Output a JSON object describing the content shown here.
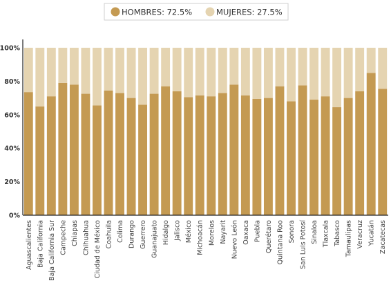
{
  "chart_data": {
    "type": "bar",
    "stacked": true,
    "percent": true,
    "title": "",
    "xlabel": "",
    "ylabel": "",
    "ylim": [
      0,
      100
    ],
    "y_ticks": [
      "0%",
      "20%",
      "40%",
      "60%",
      "80%",
      "100%"
    ],
    "grid": false,
    "legend_position": "top-center",
    "categories": [
      "Aguascalientes",
      "Baja California",
      "Baja California Sur",
      "Campeche",
      "Chiapas",
      "Chihuahua",
      "Ciudad de México",
      "Coahuila",
      "Colima",
      "Durango",
      "Guerrero",
      "Guanajuato",
      "Hidalgo",
      "Jalisco",
      "México",
      "Michoacán",
      "Morelos",
      "Nayarit",
      "Nuevo León",
      "Oaxaca",
      "Puebla",
      "Querétaro",
      "Quintana Roo",
      "Sonora",
      "San Luis Potosí",
      "Sinaloa",
      "Tlaxcala",
      "Tabasco",
      "Tamaulipas",
      "Veracruz",
      "Yucatán",
      "Zacatecas"
    ],
    "series": [
      {
        "name": "HOMBRES",
        "legend_label": "HOMBRES: 72.5%",
        "color": "#c49a52",
        "values": [
          73.5,
          65,
          71,
          79,
          78,
          72.5,
          65.5,
          74.5,
          73,
          70,
          66,
          72.5,
          77,
          74,
          70.5,
          71.5,
          71,
          73,
          78,
          71.5,
          69.5,
          70,
          77,
          68,
          77.5,
          69,
          71,
          64.5,
          70,
          74,
          85,
          75.5
        ]
      },
      {
        "name": "MUJERES",
        "legend_label": "MUJERES: 27.5%",
        "color": "#e5d4b1",
        "values": [
          26.5,
          35,
          29,
          21,
          22,
          27.5,
          34.5,
          25.5,
          27,
          30,
          34,
          27.5,
          23,
          26,
          29.5,
          28.5,
          29,
          27,
          22,
          28.5,
          30.5,
          30,
          23,
          32,
          22.5,
          31,
          29,
          35.5,
          30,
          26,
          15,
          24.5
        ]
      }
    ]
  }
}
